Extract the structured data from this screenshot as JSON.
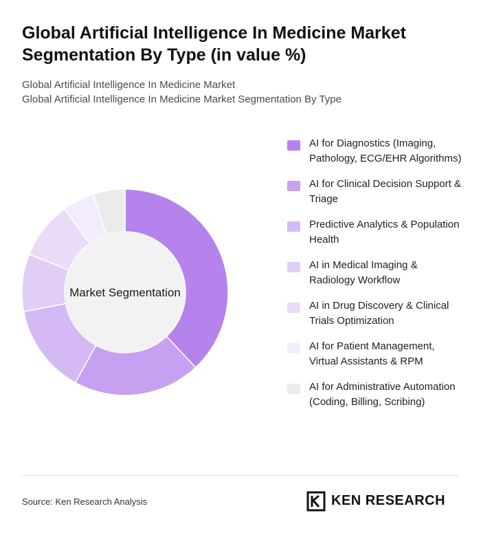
{
  "header": {
    "title": "Global Artificial Intelligence In Medicine Market Segmentation By Type (in value %)",
    "subtitle_1": "Global Artificial Intelligence In Medicine Market",
    "subtitle_2": "Global Artificial Intelligence In Medicine Market Segmentation By Type"
  },
  "chart_data": {
    "type": "pie",
    "variant": "donut",
    "center_label": "Market Segmentation",
    "legend_position": "right",
    "categories": [
      "AI for Diagnostics (Imaging, Pathology, ECG/EHR Algorithms)",
      "AI for Clinical Decision Support & Triage",
      "Predictive Analytics & Population Health",
      "AI in Medical Imaging & Radiology Workflow",
      "AI in Drug Discovery & Clinical Trials Optimization",
      "AI for Patient Management, Virtual Assistants & RPM",
      "AI for Administrative Automation (Coding, Billing, Scribing)"
    ],
    "values": [
      38,
      20,
      14,
      9,
      9,
      5,
      5
    ],
    "colors": [
      "#b583ec",
      "#c6a0f1",
      "#d5b9f4",
      "#e2cdf7",
      "#eadcf9",
      "#f3ecfc",
      "#ebebeb"
    ]
  },
  "footer": {
    "source": "Source: Ken Research Analysis",
    "logo_text": "KEN RESEARCH"
  }
}
